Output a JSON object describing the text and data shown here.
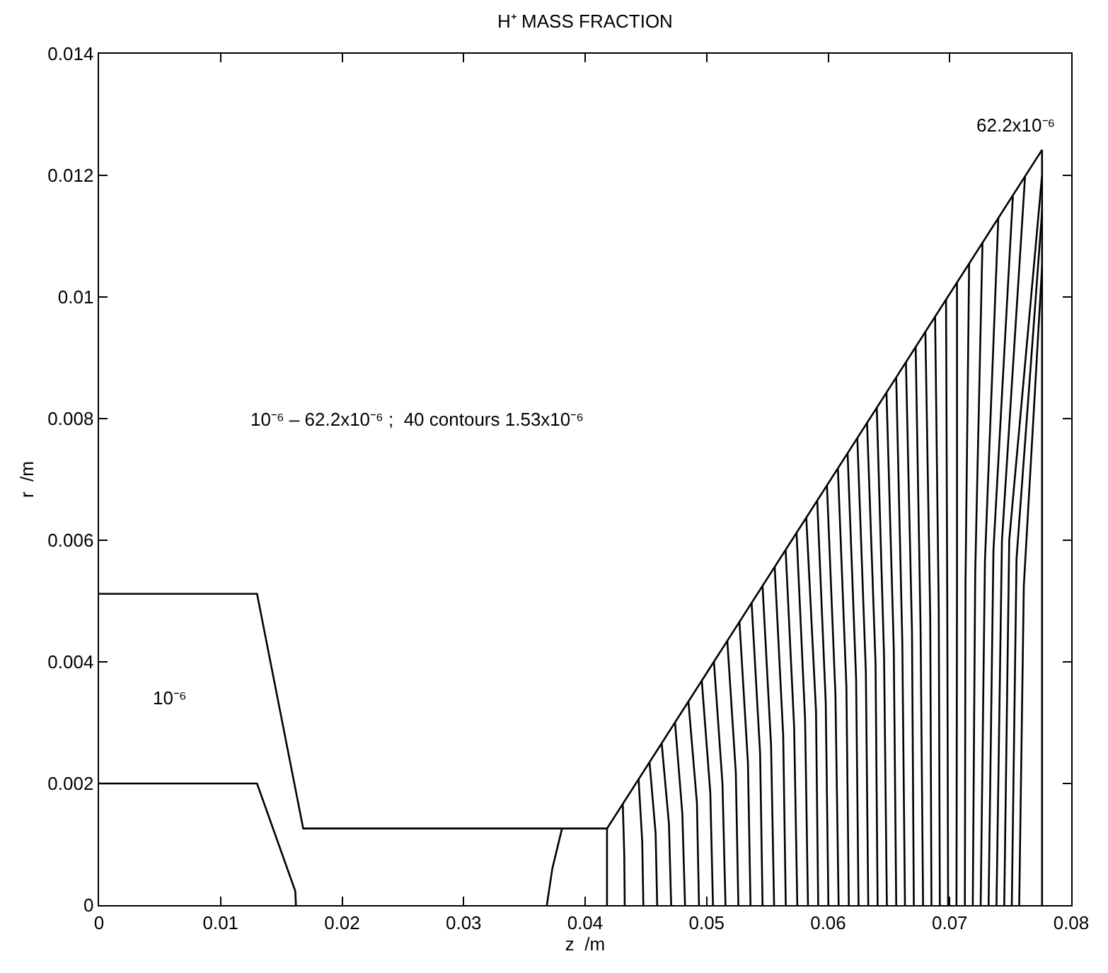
{
  "chart_data": {
    "type": "line",
    "title": "H⁺ MASS FRACTION",
    "xlabel": "z  /m",
    "ylabel": "r  /m",
    "xlim": [
      0,
      0.08
    ],
    "ylim": [
      0,
      0.014
    ],
    "xticks": [
      0,
      0.01,
      0.02,
      0.03,
      0.04,
      0.05,
      0.06,
      0.07,
      0.08
    ],
    "yticks": [
      0,
      0.002,
      0.004,
      0.006,
      0.008,
      0.01,
      0.012,
      0.014
    ],
    "marker": "none",
    "line_style": "solid",
    "annotations": [
      "10⁻⁶ – 62.2x10⁻⁶ ;  40 contours 1.53x10⁻⁶",
      "10⁻⁶",
      {
        "text": "62.2x10⁻⁶",
        "x": 0.0776,
        "y": 0.01242
      }
    ],
    "series": [
      {
        "color": "#000000",
        "x": [
          0,
          0.013,
          0.0168,
          0.0418,
          0.0776,
          0.0776
        ],
        "values": [
          0.00512,
          0.00512,
          0.00126,
          0.00126,
          0.01242,
          0
        ]
      },
      {
        "color": "#000000",
        "x": [
          0,
          0.013,
          0.01615,
          0.0162
        ],
        "values": [
          0.002,
          0.002,
          0.00023,
          0
        ]
      },
      {
        "color": "#000000",
        "x": [
          0.03685,
          0.0373,
          0.0381
        ],
        "values": [
          0,
          0.0006,
          0.00126
        ]
      },
      {
        "color": "#000000",
        "x": [
          0.0418,
          0.0418
        ],
        "values": [
          0,
          0.00126
        ]
      },
      {
        "color": "#000000",
        "x": [
          0.04326,
          0.04322,
          0.0431
        ],
        "values": [
          0,
          0.00083,
          0.00166
        ]
      },
      {
        "color": "#000000",
        "x": [
          0.04479,
          0.0447,
          0.0444
        ],
        "values": [
          0,
          0.00104,
          0.00207
        ]
      },
      {
        "color": "#000000",
        "x": [
          0.04593,
          0.0458,
          0.0453
        ],
        "values": [
          0,
          0.00118,
          0.00235
        ]
      },
      {
        "color": "#000000",
        "x": [
          0.04708,
          0.0469,
          0.0463
        ],
        "values": [
          0,
          0.00133,
          0.00266
        ]
      },
      {
        "color": "#000000",
        "x": [
          0.04822,
          0.048,
          0.0474
        ],
        "values": [
          0,
          0.0015,
          0.003
        ]
      },
      {
        "color": "#000000",
        "x": [
          0.04937,
          0.0492,
          0.0485
        ],
        "values": [
          0,
          0.00168,
          0.00335
        ]
      },
      {
        "color": "#000000",
        "x": [
          0.05052,
          0.0503,
          0.0496
        ],
        "values": [
          0,
          0.00185,
          0.00369
        ]
      },
      {
        "color": "#000000",
        "x": [
          0.05155,
          0.0513,
          0.0506
        ],
        "values": [
          0,
          0.002,
          0.004
        ]
      },
      {
        "color": "#000000",
        "x": [
          0.05261,
          0.0524,
          0.0517
        ],
        "values": [
          0,
          0.00218,
          0.00435
        ]
      },
      {
        "color": "#000000",
        "x": [
          0.05361,
          0.0534,
          0.0527
        ],
        "values": [
          0,
          0.00233,
          0.00466
        ]
      },
      {
        "color": "#000000",
        "x": [
          0.0546,
          0.0544,
          0.0537
        ],
        "values": [
          0,
          0.00249,
          0.00497
        ]
      },
      {
        "color": "#000000",
        "x": [
          0.05555,
          0.0553,
          0.0546
        ],
        "values": [
          0,
          0.00263,
          0.00525
        ]
      },
      {
        "color": "#000000",
        "x": [
          0.05651,
          0.0563,
          0.0556
        ],
        "values": [
          0,
          0.00278,
          0.00556
        ]
      },
      {
        "color": "#000000",
        "x": [
          0.05746,
          0.0572,
          0.0565
        ],
        "values": [
          0,
          0.00292,
          0.00584
        ]
      },
      {
        "color": "#000000",
        "x": [
          0.05834,
          0.0581,
          0.0574
        ],
        "values": [
          0,
          0.00306,
          0.00612
        ]
      },
      {
        "color": "#000000",
        "x": [
          0.05918,
          0.059,
          0.0582
        ],
        "values": [
          0,
          0.00319,
          0.00637
        ]
      },
      {
        "color": "#000000",
        "x": [
          0.06002,
          0.0598,
          0.0591
        ],
        "values": [
          0,
          0.00333,
          0.00665
        ]
      },
      {
        "color": "#000000",
        "x": [
          0.06086,
          0.0606,
          0.0599
        ],
        "values": [
          0,
          0.00345,
          0.0069
        ]
      },
      {
        "color": "#000000",
        "x": [
          0.0617,
          0.0615,
          0.0608
        ],
        "values": [
          0,
          0.00359,
          0.00718
        ]
      },
      {
        "color": "#000000",
        "x": [
          0.0625,
          0.0623,
          0.0616
        ],
        "values": [
          0,
          0.00372,
          0.00743
        ]
      },
      {
        "color": "#000000",
        "x": [
          0.0633,
          0.0631,
          0.0624
        ],
        "values": [
          0,
          0.00384,
          0.00768
        ]
      },
      {
        "color": "#000000",
        "x": [
          0.06407,
          0.0639,
          0.0632
        ],
        "values": [
          0,
          0.00397,
          0.00793
        ]
      },
      {
        "color": "#000000",
        "x": [
          0.06483,
          0.0646,
          0.064
        ],
        "values": [
          0,
          0.00409,
          0.00818
        ]
      },
      {
        "color": "#000000",
        "x": [
          0.0656,
          0.0654,
          0.0648
        ],
        "values": [
          0,
          0.00422,
          0.00843
        ]
      },
      {
        "color": "#000000",
        "x": [
          0.06632,
          0.0661,
          0.0656
        ],
        "values": [
          0,
          0.00434,
          0.00867
        ]
      },
      {
        "color": "#000000",
        "x": [
          0.06705,
          0.0669,
          0.0664
        ],
        "values": [
          0,
          0.00447,
          0.00893
        ]
      },
      {
        "color": "#000000",
        "x": [
          0.06781,
          0.0676,
          0.0672
        ],
        "values": [
          0,
          0.00459,
          0.00918
        ]
      },
      {
        "color": "#000000",
        "x": [
          0.0685,
          0.0684,
          0.068
        ],
        "values": [
          0,
          0.00472,
          0.00943
        ]
      },
      {
        "color": "#000000",
        "x": [
          0.06919,
          0.0691,
          0.0688
        ],
        "values": [
          0,
          0.00484,
          0.00968
        ]
      },
      {
        "color": "#000000",
        "x": [
          0.06987,
          0.0698,
          0.0697
        ],
        "values": [
          0,
          0.00498,
          0.00996
        ]
      },
      {
        "color": "#000000",
        "x": [
          0.07056,
          0.0706,
          0.0706
        ],
        "values": [
          0,
          0.00512,
          0.01024
        ]
      },
      {
        "color": "#000000",
        "x": [
          0.07125,
          0.0713,
          0.0716
        ],
        "values": [
          0,
          0.00528,
          0.01055
        ]
      },
      {
        "color": "#000000",
        "x": [
          0.0719,
          0.0721,
          0.0727
        ],
        "values": [
          0,
          0.00545,
          0.0109
        ]
      },
      {
        "color": "#000000",
        "x": [
          0.07255,
          0.0729,
          0.074
        ],
        "values": [
          0,
          0.00565,
          0.0113
        ]
      },
      {
        "color": "#000000",
        "x": [
          0.0732,
          0.0736,
          0.0752
        ],
        "values": [
          0,
          0.00583,
          0.01166
        ]
      },
      {
        "color": "#000000",
        "x": [
          0.07385,
          0.0743,
          0.0762
        ],
        "values": [
          0,
          0.00599,
          0.01198
        ]
      },
      {
        "color": "#000000",
        "x": [
          0.07449,
          0.0749,
          0.0776
        ],
        "values": [
          0,
          0.006,
          0.012
        ]
      },
      {
        "color": "#000000",
        "x": [
          0.07511,
          0.0755,
          0.0776
        ],
        "values": [
          0,
          0.0057,
          0.0114
        ]
      },
      {
        "color": "#000000",
        "x": [
          0.07572,
          0.0761,
          0.0776
        ],
        "values": [
          0,
          0.00525,
          0.0105
        ]
      }
    ]
  }
}
